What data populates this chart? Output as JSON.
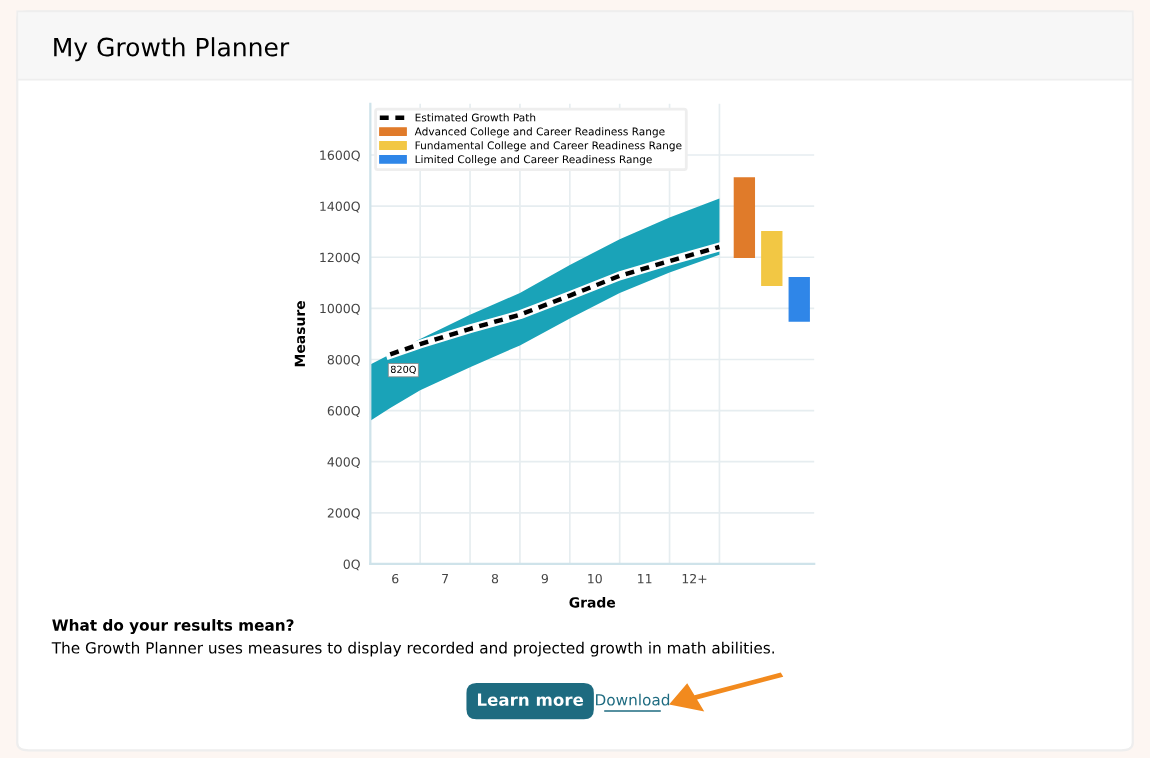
{
  "chart_data": {
    "type": "line",
    "title": "My Growth Planner",
    "xlabel": "Grade",
    "ylabel": "Measure",
    "xlim": [
      5.5,
      14.4
    ],
    "ylim": [
      0,
      1800
    ],
    "xticks": [
      6,
      7,
      8,
      9,
      10,
      11,
      {
        "value": 12,
        "label": "12+"
      }
    ],
    "yticks": [
      {
        "value": 0,
        "label": "0Q"
      },
      {
        "value": 200,
        "label": "200Q"
      },
      {
        "value": 400,
        "label": "400Q"
      },
      {
        "value": 600,
        "label": "600Q"
      },
      {
        "value": 800,
        "label": "800Q"
      },
      {
        "value": 1000,
        "label": "1000Q"
      },
      {
        "value": 1200,
        "label": "1200Q"
      },
      {
        "value": 1400,
        "label": "1400Q"
      },
      {
        "value": 1600,
        "label": "1600Q"
      }
    ],
    "grid": true,
    "legend": "top left",
    "series": [
      {
        "name": "Estimated Growth Path",
        "color": "#000000",
        "line_style": "dashed",
        "x": [
          5.5,
          5.9,
          6.5,
          7.5,
          8.5,
          9.5,
          10.5,
          11.5,
          12.5
        ],
        "values": [
          null,
          820,
          860,
          920,
          975,
          1050,
          1127,
          1185,
          1240
        ],
        "lower": [
          560,
          610,
          680,
          770,
          855,
          960,
          1060,
          1140,
          1210
        ],
        "upper": [
          780,
          820,
          880,
          975,
          1060,
          1170,
          1270,
          1355,
          1430
        ]
      },
      {
        "type": "bar",
        "name": "Advanced College and Career Readiness Range",
        "color": "#e07b2a",
        "x": [
          13.0
        ],
        "base": [
          1200
        ],
        "values": [
          310
        ]
      },
      {
        "type": "bar",
        "name": "Fundamental College and Career Readiness Range",
        "color": "#f2c744",
        "x": [
          13.55
        ],
        "base": [
          1090
        ],
        "values": [
          210
        ]
      },
      {
        "type": "bar",
        "name": "Limited College and Career Readiness Range",
        "color": "#2f86e8",
        "x": [
          14.1
        ],
        "base": [
          950
        ],
        "values": [
          170
        ]
      }
    ],
    "annotations": [
      {
        "text": "820Q",
        "x": 5.9,
        "y": 820
      },
      "What do your results mean?",
      "The Growth Planner uses measures to display recorded and projected growth in math abilities.",
      "Learn more",
      "Download"
    ]
  }
}
